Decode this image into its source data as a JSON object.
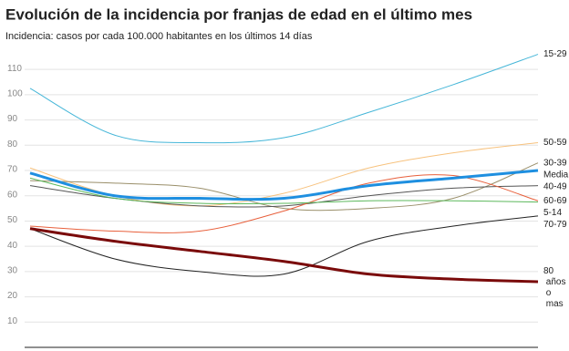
{
  "chart_data": {
    "type": "line",
    "title": "Evolución de la incidencia por franjas de edad en el último mes",
    "subtitle": "Incidencia: casos por cada 100.000 habitantes en los últimos 14 días",
    "categories": [
      null,
      null,
      null,
      null,
      null,
      null,
      null
    ],
    "ylim": [
      0,
      118
    ],
    "yticks": [
      10,
      20,
      30,
      40,
      50,
      60,
      70,
      80,
      90,
      100,
      110
    ],
    "grid": true,
    "series": [
      {
        "name": "15-29",
        "color": "#45b6d8",
        "line_width": 1,
        "values": [
          102.5,
          84,
          81,
          83,
          93,
          104,
          116
        ]
      },
      {
        "name": "50-59",
        "color": "#f7c27e",
        "line_width": 1,
        "values": [
          71,
          60,
          56,
          61,
          71,
          77,
          81
        ]
      },
      {
        "name": "30-39",
        "color": "#9a8f6a",
        "line_width": 1,
        "values": [
          66,
          65,
          63,
          55,
          55,
          59,
          73
        ]
      },
      {
        "name": "Media",
        "color": "#1e8fe0",
        "line_width": 3,
        "values": [
          69,
          60,
          59,
          59,
          64,
          67,
          70
        ]
      },
      {
        "name": "40-49",
        "color": "#555555",
        "line_width": 1,
        "values": [
          64,
          59,
          56,
          56,
          60,
          63,
          64
        ]
      },
      {
        "name": "60-69",
        "color": "#e8603c",
        "line_width": 1,
        "values": [
          48,
          46,
          46,
          54,
          65,
          68,
          58
        ]
      },
      {
        "name": "5-14",
        "color": "#5cb85c",
        "line_width": 1,
        "values": [
          67,
          59,
          57,
          57,
          58,
          58,
          57.5
        ]
      },
      {
        "name": "70-79",
        "color": "#222222",
        "line_width": 1,
        "values": [
          47,
          35,
          30,
          29,
          42,
          48,
          52
        ]
      },
      {
        "name": "80 años o mas",
        "color": "#7a0a0a",
        "line_width": 3,
        "values": [
          47,
          42,
          38,
          34,
          29,
          27,
          26
        ]
      }
    ]
  }
}
